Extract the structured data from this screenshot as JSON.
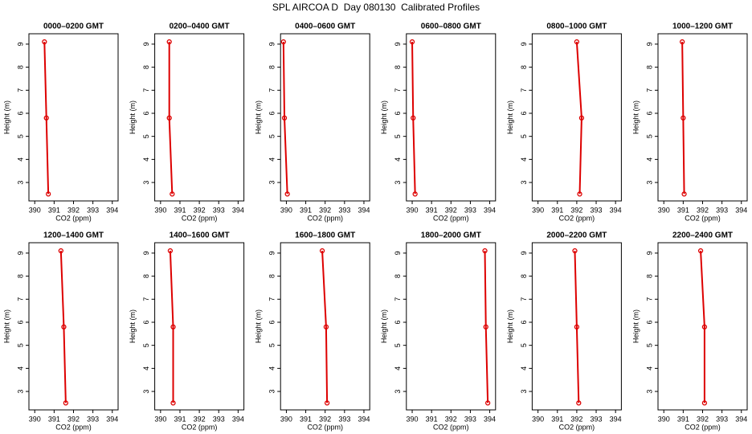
{
  "title": "SPL AIRCOA D  Day 080130  Calibrated Profiles",
  "chart_data": [
    {
      "type": "line",
      "title": "0000–0200 GMT",
      "xlabel": "CO2 (ppm)",
      "ylabel": "Height (m)",
      "x": [
        390.7,
        390.6,
        390.5
      ],
      "values": [
        2.5,
        5.8,
        9.1
      ],
      "color": "#dd0000",
      "xlim": [
        389.7,
        394.3
      ],
      "ylim": [
        2.2,
        9.45
      ],
      "xticks": [
        390,
        391,
        392,
        393,
        394
      ],
      "yticks": [
        3,
        4,
        5,
        6,
        7,
        8,
        9
      ]
    },
    {
      "type": "line",
      "title": "0200–0400 GMT",
      "xlabel": "CO2 (ppm)",
      "ylabel": "Height (m)",
      "x": [
        390.6,
        390.45,
        390.45
      ],
      "values": [
        2.5,
        5.8,
        9.1
      ],
      "color": "#dd0000",
      "xlim": [
        389.7,
        394.3
      ],
      "ylim": [
        2.2,
        9.45
      ],
      "xticks": [
        390,
        391,
        392,
        393,
        394
      ],
      "yticks": [
        3,
        4,
        5,
        6,
        7,
        8,
        9
      ]
    },
    {
      "type": "line",
      "title": "0400–0600 GMT",
      "xlabel": "CO2 (ppm)",
      "ylabel": "Height (m)",
      "x": [
        390.05,
        389.9,
        389.85
      ],
      "values": [
        2.5,
        5.8,
        9.1
      ],
      "color": "#dd0000",
      "xlim": [
        389.7,
        394.3
      ],
      "ylim": [
        2.2,
        9.45
      ],
      "xticks": [
        390,
        391,
        392,
        393,
        394
      ],
      "yticks": [
        3,
        4,
        5,
        6,
        7,
        8,
        9
      ]
    },
    {
      "type": "line",
      "title": "0600–0800 GMT",
      "xlabel": "CO2 (ppm)",
      "ylabel": "Height (m)",
      "x": [
        390.15,
        390.05,
        390.0
      ],
      "values": [
        2.5,
        5.8,
        9.1
      ],
      "color": "#dd0000",
      "xlim": [
        389.7,
        394.3
      ],
      "ylim": [
        2.2,
        9.45
      ],
      "xticks": [
        390,
        391,
        392,
        393,
        394
      ],
      "yticks": [
        3,
        4,
        5,
        6,
        7,
        8,
        9
      ]
    },
    {
      "type": "line",
      "title": "0800–1000 GMT",
      "xlabel": "CO2 (ppm)",
      "ylabel": "Height (m)",
      "x": [
        392.15,
        392.25,
        392.0
      ],
      "values": [
        2.5,
        5.8,
        9.1
      ],
      "color": "#dd0000",
      "xlim": [
        389.7,
        394.3
      ],
      "ylim": [
        2.2,
        9.45
      ],
      "xticks": [
        390,
        391,
        392,
        393,
        394
      ],
      "yticks": [
        3,
        4,
        5,
        6,
        7,
        8,
        9
      ]
    },
    {
      "type": "line",
      "title": "1000–1200 GMT",
      "xlabel": "CO2 (ppm)",
      "ylabel": "Height (m)",
      "x": [
        391.05,
        391.0,
        390.95
      ],
      "values": [
        2.5,
        5.8,
        9.1
      ],
      "color": "#dd0000",
      "xlim": [
        389.7,
        394.3
      ],
      "ylim": [
        2.2,
        9.45
      ],
      "xticks": [
        390,
        391,
        392,
        393,
        394
      ],
      "yticks": [
        3,
        4,
        5,
        6,
        7,
        8,
        9
      ]
    },
    {
      "type": "line",
      "title": "1200–1400 GMT",
      "xlabel": "CO2 (ppm)",
      "ylabel": "Height (m)",
      "x": [
        391.6,
        391.5,
        391.35
      ],
      "values": [
        2.5,
        5.8,
        9.1
      ],
      "color": "#dd0000",
      "xlim": [
        389.7,
        394.3
      ],
      "ylim": [
        2.2,
        9.45
      ],
      "xticks": [
        390,
        391,
        392,
        393,
        394
      ],
      "yticks": [
        3,
        4,
        5,
        6,
        7,
        8,
        9
      ]
    },
    {
      "type": "line",
      "title": "1400–1600 GMT",
      "xlabel": "CO2 (ppm)",
      "ylabel": "Height (m)",
      "x": [
        390.65,
        390.65,
        390.5
      ],
      "values": [
        2.5,
        5.8,
        9.1
      ],
      "color": "#dd0000",
      "xlim": [
        389.7,
        394.3
      ],
      "ylim": [
        2.2,
        9.45
      ],
      "xticks": [
        390,
        391,
        392,
        393,
        394
      ],
      "yticks": [
        3,
        4,
        5,
        6,
        7,
        8,
        9
      ]
    },
    {
      "type": "line",
      "title": "1600–1800 GMT",
      "xlabel": "CO2 (ppm)",
      "ylabel": "Height (m)",
      "x": [
        392.1,
        392.05,
        391.85
      ],
      "values": [
        2.5,
        5.8,
        9.1
      ],
      "color": "#dd0000",
      "xlim": [
        389.7,
        394.3
      ],
      "ylim": [
        2.2,
        9.45
      ],
      "xticks": [
        390,
        391,
        392,
        393,
        394
      ],
      "yticks": [
        3,
        4,
        5,
        6,
        7,
        8,
        9
      ]
    },
    {
      "type": "line",
      "title": "1800–2000 GMT",
      "xlabel": "CO2 (ppm)",
      "ylabel": "Height (m)",
      "x": [
        393.9,
        393.8,
        393.75
      ],
      "values": [
        2.5,
        5.8,
        9.1
      ],
      "color": "#dd0000",
      "xlim": [
        389.7,
        394.3
      ],
      "ylim": [
        2.2,
        9.45
      ],
      "xticks": [
        390,
        391,
        392,
        393,
        394
      ],
      "yticks": [
        3,
        4,
        5,
        6,
        7,
        8,
        9
      ]
    },
    {
      "type": "line",
      "title": "2000–2200 GMT",
      "xlabel": "CO2 (ppm)",
      "ylabel": "Height (m)",
      "x": [
        392.1,
        392.0,
        391.9
      ],
      "values": [
        2.5,
        5.8,
        9.1
      ],
      "color": "#dd0000",
      "xlim": [
        389.7,
        394.3
      ],
      "ylim": [
        2.2,
        9.45
      ],
      "xticks": [
        390,
        391,
        392,
        393,
        394
      ],
      "yticks": [
        3,
        4,
        5,
        6,
        7,
        8,
        9
      ]
    },
    {
      "type": "line",
      "title": "2200–2400 GMT",
      "xlabel": "CO2 (ppm)",
      "ylabel": "Height (m)",
      "x": [
        392.1,
        392.1,
        391.9
      ],
      "values": [
        2.5,
        5.8,
        9.1
      ],
      "color": "#dd0000",
      "xlim": [
        389.7,
        394.3
      ],
      "ylim": [
        2.2,
        9.45
      ],
      "xticks": [
        390,
        391,
        392,
        393,
        394
      ],
      "yticks": [
        3,
        4,
        5,
        6,
        7,
        8,
        9
      ]
    }
  ]
}
